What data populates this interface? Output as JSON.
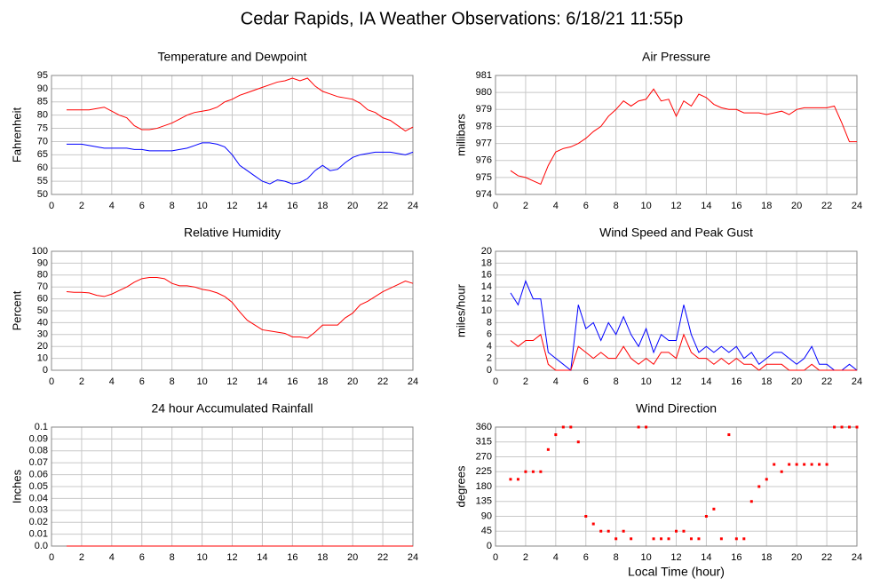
{
  "title": "Cedar Rapids, IA Weather Observations: 6/18/21 11:55p",
  "chart_data": [
    {
      "type": "line",
      "title": "Temperature and Dewpoint",
      "ylabel": "Fahrenheit",
      "x": [
        1,
        1.5,
        2,
        2.5,
        3,
        3.5,
        4,
        4.5,
        5,
        5.5,
        6,
        6.5,
        7,
        7.5,
        8,
        8.5,
        9,
        9.5,
        10,
        10.5,
        11,
        11.5,
        12,
        12.5,
        13,
        13.5,
        14,
        14.5,
        15,
        15.5,
        16,
        16.5,
        17,
        17.5,
        18,
        18.5,
        19,
        19.5,
        20,
        20.5,
        21,
        21.5,
        22,
        22.5,
        23,
        23.5,
        24
      ],
      "series": [
        {
          "color": "#ff0000",
          "values": [
            82,
            82,
            82,
            82,
            82.5,
            83,
            81.5,
            80,
            79,
            76,
            74.5,
            74.5,
            75,
            76,
            77,
            78.5,
            80,
            81,
            81.5,
            82,
            83,
            85,
            86,
            87.5,
            88.5,
            89.5,
            90.5,
            91.5,
            92.5,
            93,
            94,
            93,
            94,
            91,
            89,
            88,
            87,
            86.5,
            86,
            84.5,
            82,
            81,
            79,
            78,
            76,
            74,
            75.5
          ]
        },
        {
          "color": "#0000ff",
          "values": [
            69,
            69,
            69,
            68.5,
            68,
            67.5,
            67.5,
            67.5,
            67.5,
            67,
            67,
            66.5,
            66.5,
            66.5,
            66.5,
            67,
            67.5,
            68.5,
            69.5,
            69.5,
            69,
            68,
            65,
            61,
            59,
            57,
            55,
            54,
            55.5,
            55,
            54,
            54.5,
            56,
            59,
            61,
            59,
            59.5,
            62,
            64,
            65,
            65.5,
            66,
            66,
            66,
            65.5,
            65,
            66
          ]
        }
      ],
      "xlim": [
        0,
        24
      ],
      "xticks": [
        0,
        2,
        4,
        6,
        8,
        10,
        12,
        14,
        16,
        18,
        20,
        22,
        24
      ],
      "ylim": [
        50,
        95
      ],
      "yticks": [
        50,
        55,
        60,
        65,
        70,
        75,
        80,
        85,
        90,
        95
      ],
      "grid": true
    },
    {
      "type": "line",
      "title": "Air Pressure",
      "ylabel": "millibars",
      "x": [
        1,
        1.5,
        2,
        2.5,
        3,
        3.5,
        4,
        4.5,
        5,
        5.5,
        6,
        6.5,
        7,
        7.5,
        8,
        8.5,
        9,
        9.5,
        10,
        10.5,
        11,
        11.5,
        12,
        12.5,
        13,
        13.5,
        14,
        14.5,
        15,
        15.5,
        16,
        16.5,
        17,
        17.5,
        18,
        18.5,
        19,
        19.5,
        20,
        20.5,
        21,
        21.5,
        22,
        22.5,
        23,
        23.5,
        24
      ],
      "series": [
        {
          "color": "#ff0000",
          "values": [
            975.4,
            975.1,
            975,
            974.8,
            974.6,
            975.7,
            976.5,
            976.7,
            976.8,
            977,
            977.3,
            977.7,
            978,
            978.6,
            979,
            979.5,
            979.2,
            979.5,
            979.6,
            980.2,
            979.5,
            979.6,
            978.6,
            979.5,
            979.2,
            979.9,
            979.7,
            979.3,
            979.1,
            979,
            979,
            978.8,
            978.8,
            978.8,
            978.7,
            978.8,
            978.9,
            978.7,
            979,
            979.1,
            979.1,
            979.1,
            979.1,
            979.2,
            978.2,
            977.1,
            977.1
          ]
        }
      ],
      "xlim": [
        0,
        24
      ],
      "xticks": [
        0,
        2,
        4,
        6,
        8,
        10,
        12,
        14,
        16,
        18,
        20,
        22,
        24
      ],
      "ylim": [
        974,
        981
      ],
      "yticks": [
        974,
        975,
        976,
        977,
        978,
        979,
        980,
        981
      ],
      "grid": true
    },
    {
      "type": "line",
      "title": "Relative Humidity",
      "ylabel": "Percent",
      "x": [
        1,
        1.5,
        2,
        2.5,
        3,
        3.5,
        4,
        4.5,
        5,
        5.5,
        6,
        6.5,
        7,
        7.5,
        8,
        8.5,
        9,
        9.5,
        10,
        10.5,
        11,
        11.5,
        12,
        12.5,
        13,
        13.5,
        14,
        14.5,
        15,
        15.5,
        16,
        16.5,
        17,
        17.5,
        18,
        18.5,
        19,
        19.5,
        20,
        20.5,
        21,
        21.5,
        22,
        22.5,
        23,
        23.5,
        24
      ],
      "series": [
        {
          "color": "#ff0000",
          "values": [
            66,
            65.5,
            65.5,
            65,
            63,
            62,
            64,
            67,
            70,
            74,
            77,
            78,
            78,
            77,
            73,
            71,
            71,
            70,
            68,
            67,
            65,
            62,
            57,
            49,
            42,
            38,
            34,
            33,
            32,
            31,
            28,
            28,
            27,
            32,
            38,
            38,
            38,
            44,
            48,
            55,
            58,
            62,
            66,
            69,
            72,
            75,
            73
          ]
        }
      ],
      "xlim": [
        0,
        24
      ],
      "xticks": [
        0,
        2,
        4,
        6,
        8,
        10,
        12,
        14,
        16,
        18,
        20,
        22,
        24
      ],
      "ylim": [
        0,
        100
      ],
      "yticks": [
        0,
        10,
        20,
        30,
        40,
        50,
        60,
        70,
        80,
        90,
        100
      ],
      "grid": true
    },
    {
      "type": "line",
      "title": "Wind Speed and Peak Gust",
      "ylabel": "miles/hour",
      "x": [
        1,
        1.5,
        2,
        2.5,
        3,
        3.5,
        4,
        4.5,
        5,
        5.5,
        6,
        6.5,
        7,
        7.5,
        8,
        8.5,
        9,
        9.5,
        10,
        10.5,
        11,
        11.5,
        12,
        12.5,
        13,
        13.5,
        14,
        14.5,
        15,
        15.5,
        16,
        16.5,
        17,
        17.5,
        18,
        18.5,
        19,
        19.5,
        20,
        20.5,
        21,
        21.5,
        22,
        22.5,
        23,
        23.5,
        24
      ],
      "series": [
        {
          "color": "#0000ff",
          "values": [
            13,
            11,
            15,
            12,
            12,
            3,
            2,
            1,
            0,
            11,
            7,
            8,
            5,
            8,
            6,
            9,
            6,
            4,
            7,
            3,
            6,
            5,
            5,
            11,
            6,
            3,
            4,
            3,
            4,
            3,
            4,
            2,
            3,
            1,
            2,
            3,
            3,
            2,
            1,
            2,
            4,
            1,
            1,
            0,
            0,
            1,
            0
          ]
        },
        {
          "color": "#ff0000",
          "values": [
            5,
            4,
            5,
            5,
            6,
            1,
            0,
            0,
            0,
            4,
            3,
            2,
            3,
            2,
            2,
            4,
            2,
            1,
            2,
            1,
            3,
            3,
            2,
            6,
            3,
            2,
            2,
            1,
            2,
            1,
            2,
            1,
            1,
            0,
            1,
            1,
            1,
            0,
            0,
            0,
            1,
            0,
            0,
            0,
            0,
            0,
            0
          ]
        }
      ],
      "xlim": [
        0,
        24
      ],
      "xticks": [
        0,
        2,
        4,
        6,
        8,
        10,
        12,
        14,
        16,
        18,
        20,
        22,
        24
      ],
      "ylim": [
        0,
        20
      ],
      "yticks": [
        0,
        2,
        4,
        6,
        8,
        10,
        12,
        14,
        16,
        18,
        20
      ],
      "grid": true
    },
    {
      "type": "line",
      "title": "24 hour Accumulated Rainfall",
      "ylabel": "Inches",
      "x": [
        1,
        24
      ],
      "series": [
        {
          "color": "#ff0000",
          "values": [
            0,
            0
          ]
        }
      ],
      "xlim": [
        0,
        24
      ],
      "xticks": [
        0,
        2,
        4,
        6,
        8,
        10,
        12,
        14,
        16,
        18,
        20,
        22,
        24
      ],
      "ylim": [
        0,
        0.1
      ],
      "yticks": [
        {
          "value": 0,
          "label": "0.0"
        },
        0.01,
        0.02,
        0.03,
        0.04,
        0.05,
        0.06,
        0.07,
        0.08,
        0.09,
        0.1
      ],
      "grid": true
    },
    {
      "type": "scatter",
      "title": "Wind Direction",
      "ylabel": "degrees",
      "xlabel": "Local Time (hour)",
      "x": [
        1,
        1.5,
        2,
        2.5,
        3,
        3.5,
        4,
        4.5,
        5,
        5.5,
        6,
        6.5,
        7,
        7.5,
        8,
        8.5,
        9,
        9.5,
        10,
        10.5,
        11,
        11.5,
        12,
        12.5,
        13,
        13.5,
        14,
        14.5,
        15,
        15.5,
        16,
        16.5,
        17,
        17.5,
        18,
        18.5,
        19,
        19.5,
        20,
        20.5,
        21,
        21.5,
        22,
        22.5,
        23,
        23.5,
        24
      ],
      "series": [
        {
          "color": "#ff0000",
          "values": [
            202,
            202,
            225,
            225,
            225,
            292,
            337,
            360,
            360,
            315,
            90,
            67,
            45,
            45,
            22,
            45,
            22,
            360,
            360,
            22,
            22,
            22,
            45,
            45,
            22,
            22,
            90,
            112,
            22,
            337,
            22,
            22,
            135,
            180,
            202,
            247,
            225,
            247,
            247,
            247,
            247,
            247,
            247,
            360,
            360,
            360,
            360
          ]
        }
      ],
      "xlim": [
        0,
        24
      ],
      "xticks": [
        0,
        2,
        4,
        6,
        8,
        10,
        12,
        14,
        16,
        18,
        20,
        22,
        24
      ],
      "ylim": [
        0,
        360
      ],
      "yticks": [
        0,
        45,
        90,
        135,
        180,
        225,
        270,
        315,
        360
      ],
      "grid": true
    }
  ]
}
